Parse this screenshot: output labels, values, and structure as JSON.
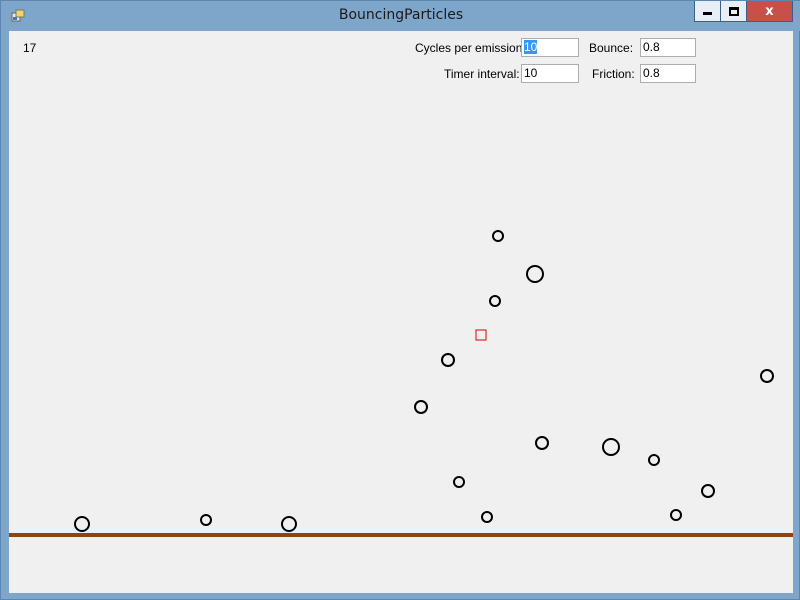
{
  "window": {
    "title": "BouncingParticles"
  },
  "counter": "17",
  "controls": {
    "cycles_label": "Cycles per emission:",
    "cycles_value": "10",
    "timer_label": "Timer interval:",
    "timer_value": "10",
    "bounce_label": "Bounce:",
    "bounce_value": "0.8",
    "friction_label": "Friction:",
    "friction_value": "0.8"
  },
  "colors": {
    "ground": "#8b4513",
    "emitter": "#dd0000",
    "particle": "#000000"
  },
  "icons": {
    "app": "app-icon",
    "minimize": "minimize-icon",
    "maximize": "maximize-icon",
    "close": "close-icon"
  }
}
